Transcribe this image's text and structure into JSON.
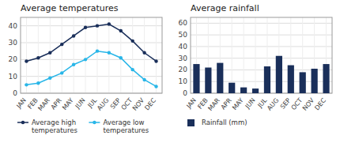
{
  "chart_data": [
    {
      "type": "line",
      "title": "Average temperatures",
      "categories": [
        "JAN",
        "FEB",
        "MAR",
        "APR",
        "MAY",
        "JUN",
        "JUL",
        "AUG",
        "SEP",
        "OCT",
        "NOV",
        "DEC"
      ],
      "series": [
        {
          "name": "Average high\ntemperatures",
          "color": "#1a2f5a",
          "marker": "circle",
          "values": [
            19,
            21,
            24,
            29,
            34,
            39,
            40,
            41,
            37,
            31,
            24,
            19
          ]
        },
        {
          "name": "Average low\ntemperatures",
          "color": "#29b6e8",
          "marker": "circle",
          "values": [
            5,
            6,
            9,
            12,
            17,
            20,
            25,
            24,
            21,
            14,
            8,
            4
          ]
        }
      ],
      "ylim": [
        0,
        45
      ],
      "yticks": [
        0,
        10,
        20,
        30,
        40
      ],
      "grid": true,
      "legend": "bottom"
    },
    {
      "type": "bar",
      "title": "Average rainfall",
      "categories": [
        "JAN",
        "FEB",
        "MAR",
        "APR",
        "MAY",
        "JUN",
        "JUL",
        "AUG",
        "SEP",
        "OCT",
        "NOV",
        "DEC"
      ],
      "series": [
        {
          "name": "Rainfall (mm)",
          "color": "#1a2f5a",
          "values": [
            25,
            22,
            26,
            9,
            5,
            4,
            23,
            32,
            24,
            18,
            21,
            25
          ]
        }
      ],
      "ylim": [
        0,
        65
      ],
      "yticks": [
        0,
        10,
        20,
        30,
        40,
        50,
        60
      ],
      "grid": true,
      "legend": "bottom"
    }
  ]
}
